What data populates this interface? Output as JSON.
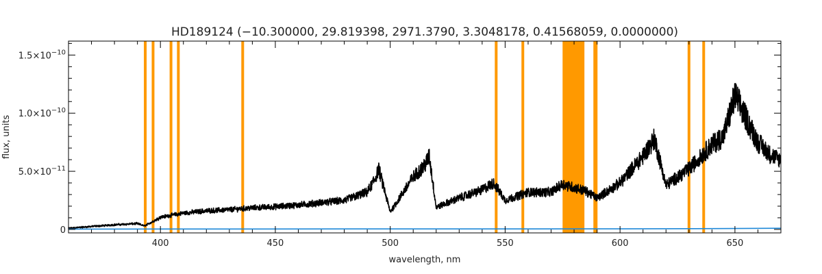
{
  "chart_data": {
    "type": "line",
    "title": "HD189124    (−10.300000, 29.819398, 2971.3790, 3.3048178, 0.41568059, 0.0000000)",
    "xlabel": "wavelength, nm",
    "ylabel": "flux, units",
    "xlim": [
      360,
      670
    ],
    "ylim": [
      -3e-12,
      1.62e-10
    ],
    "x_ticks": [
      400,
      450,
      500,
      550,
      600,
      650
    ],
    "x_tick_labels": [
      "400",
      "450",
      "500",
      "550",
      "600",
      "650"
    ],
    "y_ticks": [
      0,
      5e-11,
      1e-10,
      1.5e-10
    ],
    "y_tick_labels": [
      {
        "mantissa": "0",
        "exponent": ""
      },
      {
        "mantissa": "5.0×10",
        "exponent": "−11"
      },
      {
        "mantissa": "1.0×10",
        "exponent": "−10"
      },
      {
        "mantissa": "1.5×10",
        "exponent": "−10"
      }
    ],
    "grid": false,
    "colors": {
      "flux": "#000000",
      "error": "#1e88d8",
      "mask": "#ff9900"
    },
    "masked_lines_nm": [
      393.4,
      396.8,
      404.6,
      407.8,
      435.8,
      546.1,
      557.7,
      589.0,
      589.6,
      630.0,
      636.4
    ],
    "masked_band_nm": [
      575.0,
      584.5
    ],
    "flux_series": {
      "name": "flux",
      "x": [
        360,
        370,
        380,
        390,
        393,
        396,
        400,
        410,
        420,
        430,
        440,
        450,
        460,
        470,
        480,
        490,
        493,
        495,
        500,
        505,
        510,
        515,
        517,
        520,
        530,
        540,
        545,
        550,
        560,
        570,
        575,
        585,
        590,
        600,
        610,
        615,
        620,
        630,
        640,
        645,
        650,
        655,
        660,
        665,
        670
      ],
      "y": [
        1e-12,
        2.5e-12,
        4e-12,
        5e-12,
        3e-12,
        6e-12,
        1.05e-11,
        1.4e-11,
        1.6e-11,
        1.7e-11,
        1.85e-11,
        1.95e-11,
        2.1e-11,
        2.3e-11,
        2.5e-11,
        3.2e-11,
        4.2e-11,
        5.2e-11,
        1.5e-11,
        3e-11,
        4.5e-11,
        5.5e-11,
        6.3e-11,
        1.9e-11,
        2.7e-11,
        3.4e-11,
        4e-11,
        2.5e-11,
        3.2e-11,
        3.2e-11,
        3.9e-11,
        3.3e-11,
        2.7e-11,
        4e-11,
        6.3e-11,
        7.8e-11,
        3.8e-11,
        5.2e-11,
        7.3e-11,
        8e-11,
        1.15e-10,
        9.5e-11,
        7.5e-11,
        6.5e-11,
        5.9e-11
      ],
      "noise_fraction": 0.12
    },
    "error_series": {
      "name": "error",
      "x": [
        360,
        500,
        600,
        650,
        670
      ],
      "y": [
        3e-13,
        4e-13,
        5e-13,
        8e-13,
        1e-12
      ]
    }
  }
}
